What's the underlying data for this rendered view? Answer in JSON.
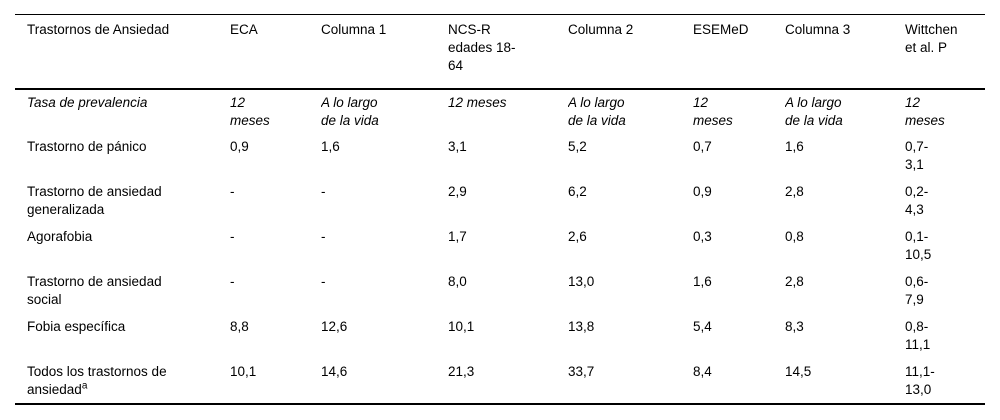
{
  "table": {
    "header": [
      "Trastornos de Ansiedad",
      "ECA",
      "Columna 1",
      "NCS-R\nedades 18-\n64",
      "Columna 2",
      "ESEMeD",
      "Columna 3",
      "Wittchen\net al. P"
    ],
    "subheader": {
      "label": "Tasa de prevalencia",
      "values": [
        "12\nmeses",
        "A lo largo\nde la vida",
        "12 meses",
        "A lo largo\nde la vida",
        "12\nmeses",
        "A lo largo\nde la vida",
        "12\nmeses"
      ]
    },
    "rows": [
      {
        "label": "Trastorno de pánico",
        "values": [
          "0,9",
          "1,6",
          "3,1",
          "5,2",
          "0,7",
          "1,6",
          "0,7-\n3,1"
        ]
      },
      {
        "label": "Trastorno de ansiedad\ngeneralizada",
        "values": [
          "-",
          "-",
          "2,9",
          "6,2",
          "0,9",
          "2,8",
          "0,2-\n4,3"
        ]
      },
      {
        "label": "Agorafobia",
        "values": [
          "-",
          "-",
          "1,7",
          "2,6",
          "0,3",
          "0,8",
          "0,1-\n10,5"
        ]
      },
      {
        "label": "Trastorno de ansiedad\nsocial",
        "values": [
          "-",
          "-",
          "8,0",
          "13,0",
          "1,6",
          "2,8",
          "0,6-\n7,9"
        ]
      },
      {
        "label": "Fobia específica",
        "values": [
          "8,8",
          "12,6",
          "10,1",
          "13,8",
          "5,4",
          "8,3",
          "0,8-\n11,1"
        ]
      },
      {
        "label": "Todos los trastornos de\nansiedad",
        "label_sup": "a",
        "values": [
          "10,1",
          "14,6",
          "21,3",
          "33,7",
          "8,4",
          "14,5",
          "11,1-\n13,0"
        ]
      }
    ]
  }
}
